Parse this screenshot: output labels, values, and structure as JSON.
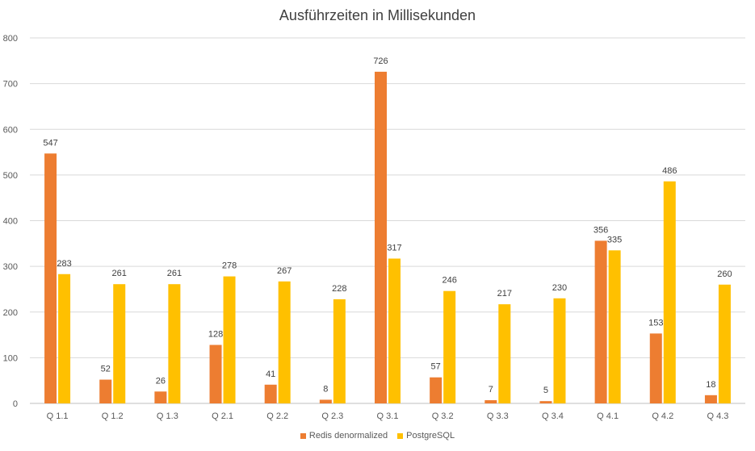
{
  "chart_data": {
    "type": "bar",
    "title": "Ausführzeiten in Millisekunden",
    "categories": [
      "Q 1.1",
      "Q 1.2",
      "Q 1.3",
      "Q 2.1",
      "Q 2.2",
      "Q 2.3",
      "Q 3.1",
      "Q 3.2",
      "Q 3.3",
      "Q 3.4",
      "Q 4.1",
      "Q 4.2",
      "Q 4.3"
    ],
    "series": [
      {
        "name": "Redis denormalized",
        "color": "#ED7D31",
        "values": [
          547,
          52,
          26,
          128,
          41,
          8,
          726,
          57,
          7,
          5,
          356,
          153,
          18
        ]
      },
      {
        "name": "PostgreSQL",
        "color": "#FFC000",
        "values": [
          283,
          261,
          261,
          278,
          267,
          228,
          317,
          246,
          217,
          230,
          335,
          486,
          260
        ]
      }
    ],
    "ylim": [
      0,
      800
    ],
    "yticks": [
      0,
      100,
      200,
      300,
      400,
      500,
      600,
      700,
      800
    ],
    "grid": true,
    "legend_position": "bottom",
    "data_labels": true
  }
}
